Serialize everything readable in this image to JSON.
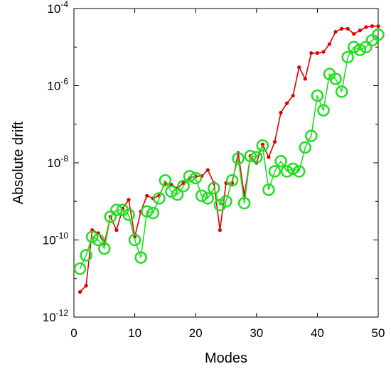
{
  "chart_data": {
    "type": "line",
    "xlabel": "Modes",
    "ylabel": "Absolute drift",
    "xlim": [
      0,
      50
    ],
    "ylim": [
      1e-12,
      0.0001
    ],
    "yscale": "log",
    "grid": false,
    "xticks": [
      {
        "value": 0,
        "label": "0"
      },
      {
        "value": 10,
        "label": "10"
      },
      {
        "value": 20,
        "label": "20"
      },
      {
        "value": 30,
        "label": "30"
      },
      {
        "value": 40,
        "label": "40"
      },
      {
        "value": 50,
        "label": "50"
      }
    ],
    "yticks": [
      {
        "value": 1e-12,
        "base": "10",
        "exp": "-12"
      },
      {
        "value": 1e-10,
        "base": "10",
        "exp": "-10"
      },
      {
        "value": 1e-08,
        "base": "10",
        "exp": "-8"
      },
      {
        "value": 1e-06,
        "base": "10",
        "exp": "-6"
      },
      {
        "value": 0.0001,
        "base": "10",
        "exp": "-4"
      }
    ],
    "x": [
      1,
      2,
      3,
      4,
      5,
      6,
      7,
      8,
      9,
      10,
      11,
      12,
      13,
      14,
      15,
      16,
      17,
      18,
      19,
      20,
      21,
      22,
      23,
      24,
      25,
      26,
      27,
      28,
      29,
      30,
      31,
      32,
      33,
      34,
      35,
      36,
      37,
      38,
      39,
      40,
      41,
      42,
      43,
      44,
      45,
      46,
      47,
      48,
      49,
      50
    ],
    "series": [
      {
        "color": "#e00000",
        "marker": "dot",
        "values": [
          4.5e-12,
          6.5e-12,
          1.8e-10,
          1.5e-10,
          8e-11,
          4e-10,
          1.8e-10,
          6.5e-10,
          1.1e-09,
          1.2e-10,
          5.5e-10,
          1.4e-09,
          1.2e-09,
          1.4e-09,
          3e-09,
          2.7e-09,
          2.2e-09,
          3e-09,
          4e-09,
          4.5e-09,
          4.5e-09,
          6.5e-09,
          3e-09,
          1.8e-10,
          3e-09,
          3e-09,
          1.8e-08,
          1.4e-09,
          1.5e-08,
          1e-08,
          3e-08,
          1.4e-08,
          3.5e-08,
          2e-07,
          3.5e-07,
          5.5e-07,
          3e-06,
          1.5e-06,
          7e-06,
          7e-06,
          7.5e-06,
          1.2e-05,
          2.5e-05,
          3e-05,
          3e-05,
          2.2e-05,
          2.7e-05,
          3.3e-05,
          3.5e-05,
          3.5e-05
        ]
      },
      {
        "color": "#22dd22",
        "marker": "circle",
        "values": [
          1.8e-11,
          4e-11,
          1.2e-10,
          1e-10,
          6e-11,
          4e-10,
          6e-10,
          6e-10,
          4.5e-10,
          1e-10,
          3.5e-11,
          5.5e-10,
          5e-10,
          1.2e-09,
          3.5e-09,
          1.8e-09,
          1.5e-09,
          2.5e-09,
          4.5e-09,
          4e-09,
          1.4e-09,
          1.2e-09,
          2.2e-09,
          8e-10,
          1e-09,
          3.5e-09,
          1.3e-08,
          9e-10,
          1.5e-08,
          1.4e-08,
          2.8e-08,
          2e-09,
          6e-09,
          1.1e-08,
          6e-09,
          7e-09,
          6e-09,
          2.5e-08,
          5e-08,
          5.5e-07,
          2.3e-07,
          2e-06,
          1.5e-06,
          7e-07,
          5.5e-06,
          1e-05,
          8.5e-06,
          1e-05,
          1.5e-05,
          2.1e-05
        ]
      }
    ]
  }
}
